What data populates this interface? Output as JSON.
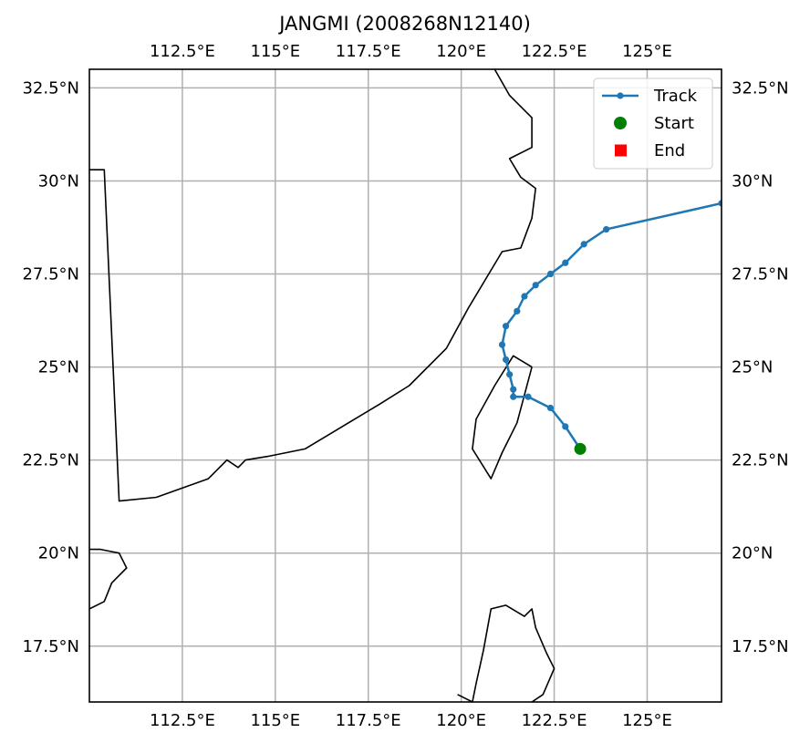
{
  "title": "JANGMI (2008268N12140)",
  "chart_data": {
    "type": "line",
    "projection": "PlateCarree",
    "extent": {
      "lon": [
        110,
        127
      ],
      "lat": [
        16,
        33
      ]
    },
    "grid": true,
    "lon_ticks": [
      {
        "value": 112.5,
        "label": "112.5°E"
      },
      {
        "value": 115,
        "label": "115°E"
      },
      {
        "value": 117.5,
        "label": "117.5°E"
      },
      {
        "value": 120,
        "label": "120°E"
      },
      {
        "value": 122.5,
        "label": "122.5°E"
      },
      {
        "value": 125,
        "label": "125°E"
      }
    ],
    "lat_ticks": [
      {
        "value": 32.5,
        "label": "32.5°N"
      },
      {
        "value": 30,
        "label": "30°N"
      },
      {
        "value": 27.5,
        "label": "27.5°N"
      },
      {
        "value": 25,
        "label": "25°N"
      },
      {
        "value": 22.5,
        "label": "22.5°N"
      },
      {
        "value": 20,
        "label": "20°N"
      },
      {
        "value": 17.5,
        "label": "17.5°N"
      }
    ],
    "legend": {
      "placement": "top-right",
      "entries": [
        {
          "label": "Track",
          "color": "#1f77b4",
          "marker": "line-dot"
        },
        {
          "label": "Start",
          "color": "#008000",
          "marker": "circle"
        },
        {
          "label": "End",
          "color": "#ff0000",
          "marker": "square"
        }
      ]
    },
    "series": [
      {
        "name": "Track",
        "color": "#1f77b4",
        "points": [
          {
            "lon": 123.2,
            "lat": 22.8
          },
          {
            "lon": 122.8,
            "lat": 23.4
          },
          {
            "lon": 122.4,
            "lat": 23.9
          },
          {
            "lon": 121.8,
            "lat": 24.2
          },
          {
            "lon": 121.4,
            "lat": 24.2
          },
          {
            "lon": 121.4,
            "lat": 24.4
          },
          {
            "lon": 121.3,
            "lat": 24.8
          },
          {
            "lon": 121.2,
            "lat": 25.2
          },
          {
            "lon": 121.1,
            "lat": 25.6
          },
          {
            "lon": 121.2,
            "lat": 26.1
          },
          {
            "lon": 121.5,
            "lat": 26.5
          },
          {
            "lon": 121.7,
            "lat": 26.9
          },
          {
            "lon": 122.0,
            "lat": 27.2
          },
          {
            "lon": 122.4,
            "lat": 27.5
          },
          {
            "lon": 122.8,
            "lat": 27.8
          },
          {
            "lon": 123.3,
            "lat": 28.3
          },
          {
            "lon": 123.9,
            "lat": 28.7
          },
          {
            "lon": 127.0,
            "lat": 29.4
          }
        ],
        "start": {
          "lon": 123.2,
          "lat": 22.8
        }
      }
    ],
    "coastlines": [
      [
        [
          110,
          30.3
        ],
        [
          110.4,
          30.3
        ],
        [
          110.8,
          21.4
        ],
        [
          111.8,
          21.5
        ],
        [
          113.2,
          22.0
        ],
        [
          113.7,
          22.5
        ],
        [
          114.0,
          22.3
        ],
        [
          114.2,
          22.5
        ],
        [
          114.8,
          22.6
        ],
        [
          115.8,
          22.8
        ],
        [
          116.8,
          23.4
        ],
        [
          117.8,
          24.0
        ],
        [
          118.6,
          24.5
        ],
        [
          119.6,
          25.5
        ],
        [
          120.2,
          26.6
        ],
        [
          120.8,
          27.6
        ],
        [
          121.1,
          28.1
        ],
        [
          121.6,
          28.2
        ],
        [
          121.9,
          29.0
        ],
        [
          122.0,
          29.8
        ],
        [
          121.6,
          30.1
        ],
        [
          121.3,
          30.6
        ],
        [
          121.9,
          30.9
        ],
        [
          121.9,
          31.7
        ],
        [
          121.3,
          32.3
        ],
        [
          120.9,
          33.0
        ]
      ],
      [
        [
          121.9,
          25.0
        ],
        [
          121.4,
          25.3
        ],
        [
          120.9,
          24.5
        ],
        [
          120.4,
          23.6
        ],
        [
          120.3,
          22.8
        ],
        [
          120.8,
          22.0
        ],
        [
          121.1,
          22.7
        ],
        [
          121.5,
          23.5
        ],
        [
          121.9,
          25.0
        ]
      ],
      [
        [
          110,
          20.1
        ],
        [
          110.3,
          20.1
        ],
        [
          110.8,
          20.0
        ],
        [
          111.0,
          19.6
        ],
        [
          110.6,
          19.2
        ],
        [
          110.4,
          18.7
        ],
        [
          110.0,
          18.5
        ]
      ],
      [
        [
          119.9,
          16.2
        ],
        [
          120.3,
          16.0
        ],
        [
          120.4,
          16.5
        ],
        [
          120.6,
          17.4
        ],
        [
          120.8,
          18.5
        ],
        [
          121.2,
          18.6
        ],
        [
          121.7,
          18.3
        ],
        [
          121.9,
          18.5
        ],
        [
          122.0,
          18.0
        ],
        [
          122.3,
          17.3
        ],
        [
          122.5,
          16.9
        ],
        [
          122.2,
          16.2
        ],
        [
          121.9,
          16.0
        ]
      ]
    ]
  }
}
